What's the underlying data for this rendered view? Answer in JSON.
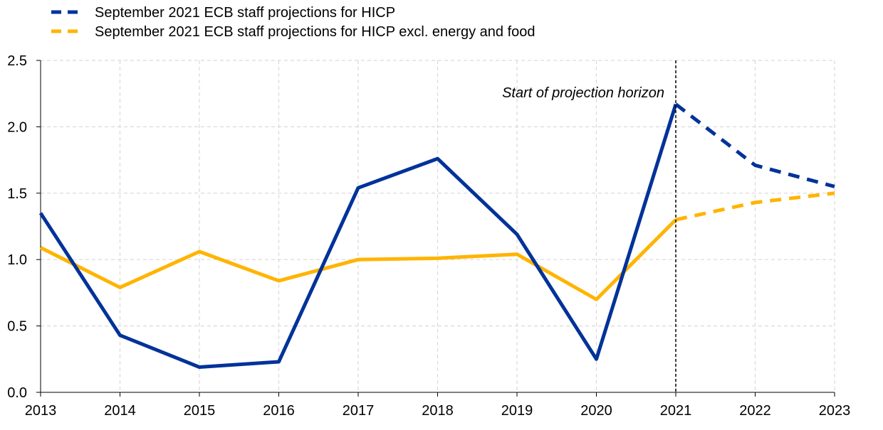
{
  "chart_data": {
    "type": "line",
    "title": "",
    "xlabel": "",
    "ylabel": "",
    "xlim": [
      2013,
      2023
    ],
    "ylim": [
      0.0,
      2.5
    ],
    "x_ticks": [
      "2013",
      "2014",
      "2015",
      "2016",
      "2017",
      "2018",
      "2019",
      "2020",
      "2021",
      "2022",
      "2023"
    ],
    "y_ticks": [
      "0.0",
      "0.5",
      "1.0",
      "1.5",
      "2.0",
      "2.5"
    ],
    "grid": true,
    "legend_position": "top-left",
    "legend": [
      {
        "label": "September 2021 ECB staff projections for HICP",
        "color": "#003299",
        "style": "dashed"
      },
      {
        "label": "September 2021 ECB staff projections for HICP excl. energy and food",
        "color": "#FFB400",
        "style": "dashed"
      }
    ],
    "annotation": {
      "text": "Start of projection horizon",
      "x": 2021
    },
    "series": [
      {
        "color": "#003299",
        "actual": {
          "x": [
            2013,
            2014,
            2015,
            2016,
            2017,
            2018,
            2019,
            2020,
            2021
          ],
          "y": [
            1.35,
            0.43,
            0.19,
            0.23,
            1.54,
            1.76,
            1.19,
            0.25,
            2.17
          ]
        },
        "projection": {
          "x": [
            2021,
            2022,
            2023
          ],
          "y": [
            2.17,
            1.71,
            1.55
          ]
        }
      },
      {
        "color": "#FFB400",
        "actual": {
          "x": [
            2013,
            2014,
            2015,
            2016,
            2017,
            2018,
            2019,
            2020,
            2021
          ],
          "y": [
            1.09,
            0.79,
            1.06,
            0.84,
            1.0,
            1.01,
            1.04,
            0.7,
            1.3
          ]
        },
        "projection": {
          "x": [
            2021,
            2022,
            2023
          ],
          "y": [
            1.3,
            1.43,
            1.5
          ]
        }
      }
    ]
  }
}
